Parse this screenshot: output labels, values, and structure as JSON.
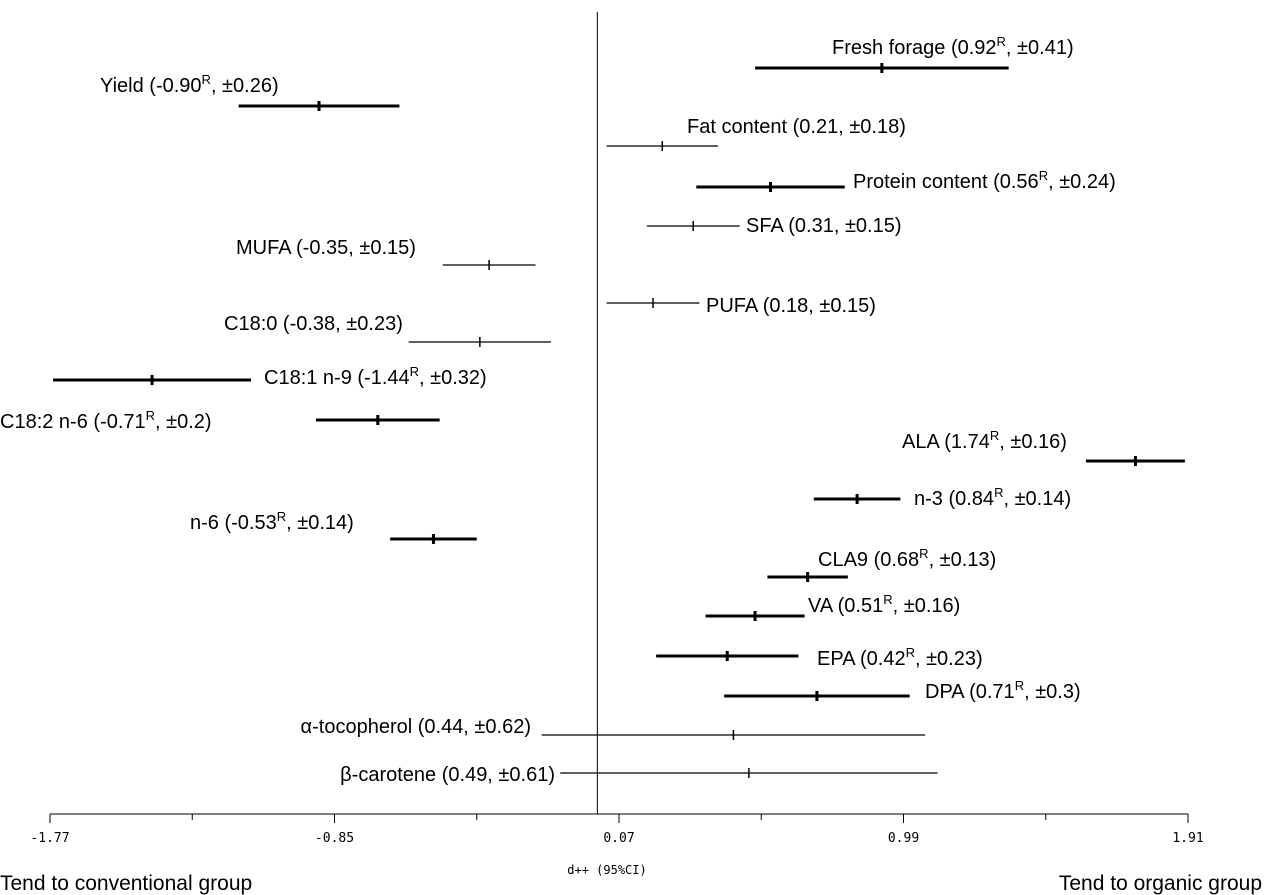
{
  "chart_data": {
    "type": "forest",
    "xlabel": "d++ (95%CI)",
    "x_ticks": [
      -1.77,
      -0.85,
      0.07,
      0.99,
      1.91
    ],
    "xlim": [
      -1.77,
      1.91
    ],
    "reference_line": 0,
    "left_caption": "Tend to conventional group",
    "right_caption": "Tend to organic group",
    "rows": [
      {
        "name": "Fresh forage",
        "estimate": 0.92,
        "ci": 0.41,
        "label": "Fresh forage (0.92",
        "sup": "R",
        "tail": ", ±0.41)",
        "bold": true
      },
      {
        "name": "Yield",
        "estimate": -0.9,
        "ci": 0.26,
        "label": "Yield (-0.90",
        "sup": "R",
        "tail": ", ±0.26)",
        "bold": true
      },
      {
        "name": "Fat content",
        "estimate": 0.21,
        "ci": 0.18,
        "label": "Fat content (0.21, ±0.18)",
        "sup": "",
        "tail": "",
        "bold": false
      },
      {
        "name": "Protein content",
        "estimate": 0.56,
        "ci": 0.24,
        "label": "Protein content (0.56",
        "sup": "R",
        "tail": ", ±0.24)",
        "bold": true
      },
      {
        "name": "SFA",
        "estimate": 0.31,
        "ci": 0.15,
        "label": "SFA (0.31, ±0.15)",
        "sup": "",
        "tail": "",
        "bold": false
      },
      {
        "name": "MUFA",
        "estimate": -0.35,
        "ci": 0.15,
        "label": "MUFA (-0.35, ±0.15)",
        "sup": "",
        "tail": "",
        "bold": false
      },
      {
        "name": "PUFA",
        "estimate": 0.18,
        "ci": 0.15,
        "label": "PUFA (0.18, ±0.15)",
        "sup": "",
        "tail": "",
        "bold": false
      },
      {
        "name": "C18:0",
        "estimate": -0.38,
        "ci": 0.23,
        "label": "C18:0 (-0.38, ±0.23)",
        "sup": "",
        "tail": "",
        "bold": false
      },
      {
        "name": "C18:1 n-9",
        "estimate": -1.44,
        "ci": 0.32,
        "label": "C18:1 n-9 (-1.44",
        "sup": "R",
        "tail": ", ±0.32)",
        "bold": true
      },
      {
        "name": "C18:2 n-6",
        "estimate": -0.71,
        "ci": 0.2,
        "label": "C18:2 n-6 (-0.71",
        "sup": "R",
        "tail": ", ±0.2)",
        "bold": true
      },
      {
        "name": "ALA",
        "estimate": 1.74,
        "ci": 0.16,
        "label": "ALA (1.74",
        "sup": "R",
        "tail": ", ±0.16)",
        "bold": true
      },
      {
        "name": "n-3",
        "estimate": 0.84,
        "ci": 0.14,
        "label": "n-3 (0.84",
        "sup": "R",
        "tail": ", ±0.14)",
        "bold": true
      },
      {
        "name": "n-6",
        "estimate": -0.53,
        "ci": 0.14,
        "label": "n-6 (-0.53",
        "sup": "R",
        "tail": ", ±0.14)",
        "bold": true
      },
      {
        "name": "CLA9",
        "estimate": 0.68,
        "ci": 0.13,
        "label": "CLA9 (0.68",
        "sup": "R",
        "tail": ", ±0.13)",
        "bold": true
      },
      {
        "name": "VA",
        "estimate": 0.51,
        "ci": 0.16,
        "label": "VA (0.51",
        "sup": "R",
        "tail": ", ±0.16)",
        "bold": true
      },
      {
        "name": "EPA",
        "estimate": 0.42,
        "ci": 0.23,
        "label": "EPA (0.42",
        "sup": "R",
        "tail": ", ±0.23)",
        "bold": true
      },
      {
        "name": "DPA",
        "estimate": 0.71,
        "ci": 0.3,
        "label": "DPA (0.71",
        "sup": "R",
        "tail": ", ±0.3)",
        "bold": true
      },
      {
        "name": "α-tocopherol",
        "estimate": 0.44,
        "ci": 0.62,
        "label": "α-tocopherol (0.44, ±0.62)",
        "sup": "",
        "tail": "",
        "bold": false
      },
      {
        "name": "β-carotene",
        "estimate": 0.49,
        "ci": 0.61,
        "label": "β-carotene (0.49, ±0.61)",
        "sup": "",
        "tail": "",
        "bold": false
      }
    ]
  }
}
